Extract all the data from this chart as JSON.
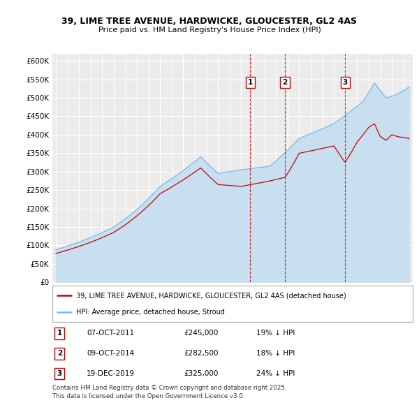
{
  "title_line1": "39, LIME TREE AVENUE, HARDWICKE, GLOUCESTER, GL2 4AS",
  "title_line2": "Price paid vs. HM Land Registry's House Price Index (HPI)",
  "ylim": [
    0,
    620000
  ],
  "yticks": [
    0,
    50000,
    100000,
    150000,
    200000,
    250000,
    300000,
    350000,
    400000,
    450000,
    500000,
    550000,
    600000
  ],
  "ytick_labels": [
    "£0",
    "£50K",
    "£100K",
    "£150K",
    "£200K",
    "£250K",
    "£300K",
    "£350K",
    "£400K",
    "£450K",
    "£500K",
    "£550K",
    "£600K"
  ],
  "xlim_start": 1994.7,
  "xlim_end": 2025.8,
  "background_color": "#ffffff",
  "plot_bg_color": "#ebebeb",
  "grid_color": "#ffffff",
  "hpi_color": "#7ab8e8",
  "hpi_fill_color": "#c8dff0",
  "price_color": "#cc0000",
  "sale_line_color": "#cc0000",
  "legend_label_price": "39, LIME TREE AVENUE, HARDWICKE, GLOUCESTER, GL2 4AS (detached house)",
  "legend_label_hpi": "HPI: Average price, detached house, Stroud",
  "sales": [
    {
      "num": 1,
      "date": "07-OCT-2011",
      "price": 245000,
      "pct": "19%",
      "x": 2011.77
    },
    {
      "num": 2,
      "date": "09-OCT-2014",
      "price": 282500,
      "pct": "18%",
      "x": 2014.77
    },
    {
      "num": 3,
      "date": "19-DEC-2019",
      "price": 325000,
      "pct": "24%",
      "x": 2019.96
    }
  ],
  "footnote": "Contains HM Land Registry data © Crown copyright and database right 2025.\nThis data is licensed under the Open Government Licence v3.0."
}
